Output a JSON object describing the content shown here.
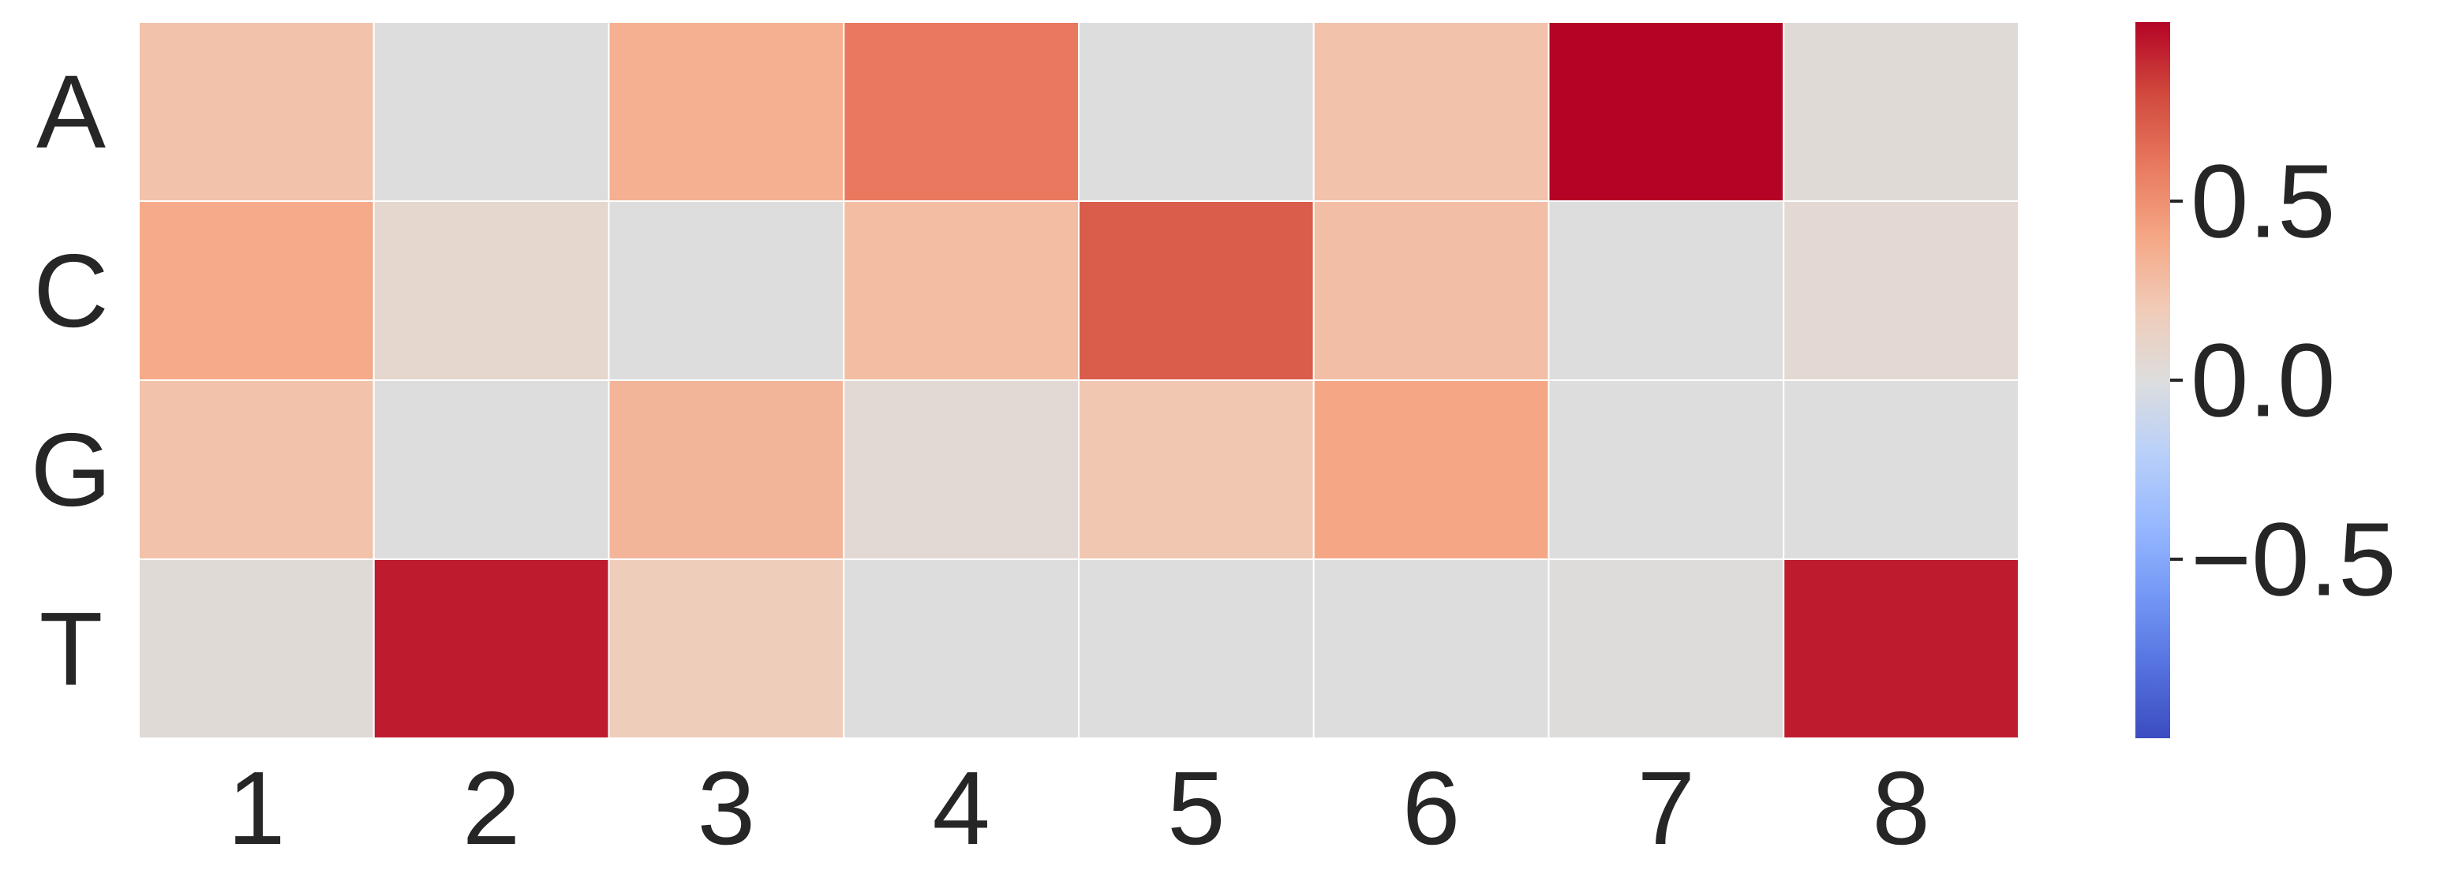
{
  "chart_data": {
    "type": "heatmap",
    "title": "",
    "xlabel": "",
    "ylabel": "",
    "rows": [
      "A",
      "C",
      "G",
      "T"
    ],
    "columns": [
      "1",
      "2",
      "3",
      "4",
      "5",
      "6",
      "7",
      "8"
    ],
    "values": [
      [
        0.25,
        0.0,
        0.35,
        0.6,
        0.0,
        0.25,
        1.0,
        0.03
      ],
      [
        0.38,
        0.08,
        0.0,
        0.28,
        0.72,
        0.27,
        0.0,
        0.06
      ],
      [
        0.25,
        0.0,
        0.32,
        0.05,
        0.22,
        0.4,
        0.0,
        0.0
      ],
      [
        0.03,
        0.93,
        0.18,
        0.0,
        0.0,
        0.0,
        0.01,
        0.93
      ]
    ],
    "colorbar": {
      "colormap": "coolwarm",
      "vmin": -1.0,
      "vmax": 1.0,
      "ticks": [
        0.5,
        0.0,
        -0.5
      ],
      "tick_labels": [
        "0.5",
        "0.0",
        "−0.5"
      ]
    },
    "grid": true,
    "cell_border_color": "#ffffff"
  }
}
